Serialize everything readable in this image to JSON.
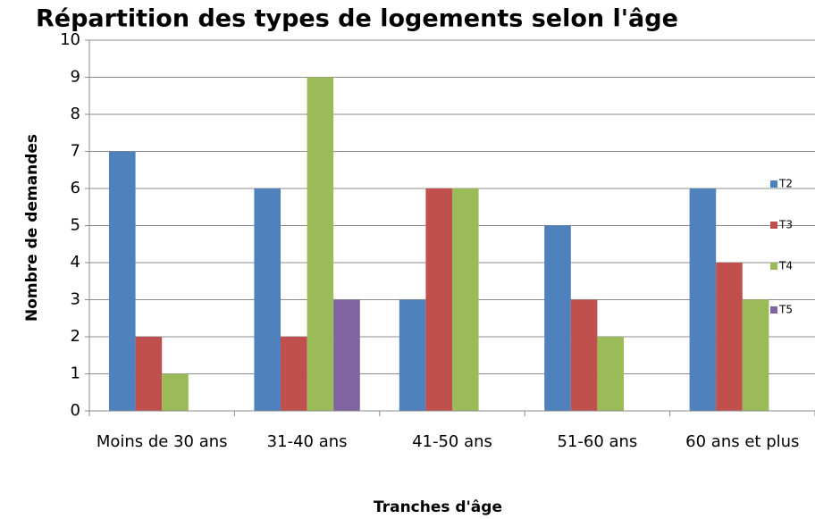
{
  "chart_data": {
    "type": "bar",
    "title": "Répartition des types de logements selon l'âge",
    "x_label": "Tranches d'âge",
    "y_label": "Nombre de demandes",
    "categories": [
      "Moins de 30 ans",
      "31-40 ans",
      "41-50 ans",
      "51-60 ans",
      "60 ans et plus"
    ],
    "series": [
      {
        "name": "T2",
        "color": "#4f81bd",
        "values": [
          7,
          6,
          3,
          5,
          6
        ]
      },
      {
        "name": "T3",
        "color": "#c0504d",
        "values": [
          2,
          2,
          6,
          3,
          4
        ]
      },
      {
        "name": "T4",
        "color": "#9bbb59",
        "values": [
          1,
          9,
          6,
          2,
          3
        ]
      },
      {
        "name": "T5",
        "color": "#8064a2",
        "values": [
          0,
          3,
          0,
          0,
          0
        ]
      }
    ],
    "ylim": [
      0,
      10
    ],
    "yticks": [
      0,
      1,
      2,
      3,
      4,
      5,
      6,
      7,
      8,
      9,
      10
    ],
    "grid": true,
    "legend": "right"
  }
}
